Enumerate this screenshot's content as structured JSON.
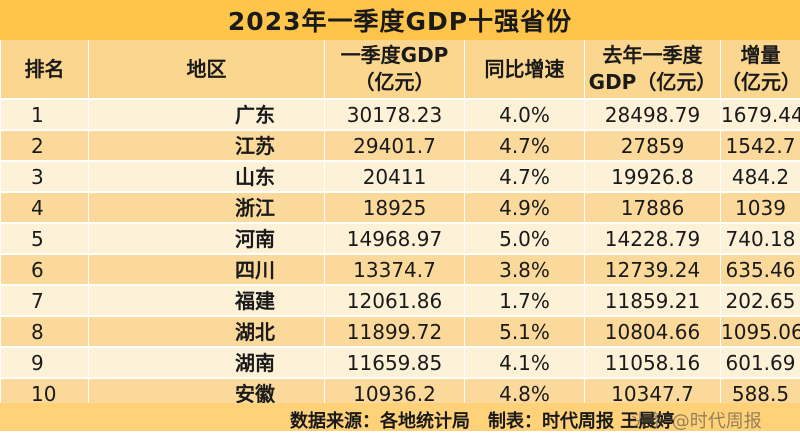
{
  "title": "2023年一季度GDP十强省份",
  "headers": {
    "rank": "排名",
    "region": "地区",
    "gdp_line1": "一季度GDP",
    "gdp_line2": "（亿元）",
    "growth": "同比增速",
    "prev_line1": "去年一季度",
    "prev_line2": "GDP（亿元）",
    "inc_line1": "增量",
    "inc_line2": "（亿元）"
  },
  "rows": [
    {
      "rank": "1",
      "region": "广东",
      "gdp": "30178.23",
      "growth": "4.0%",
      "prev": "28498.79",
      "inc": "1679.44"
    },
    {
      "rank": "2",
      "region": "江苏",
      "gdp": "29401.7",
      "growth": "4.7%",
      "prev": "27859",
      "inc": "1542.7"
    },
    {
      "rank": "3",
      "region": "山东",
      "gdp": "20411",
      "growth": "4.7%",
      "prev": "19926.8",
      "inc": "484.2"
    },
    {
      "rank": "4",
      "region": "浙江",
      "gdp": "18925",
      "growth": "4.9%",
      "prev": "17886",
      "inc": "1039"
    },
    {
      "rank": "5",
      "region": "河南",
      "gdp": "14968.97",
      "growth": "5.0%",
      "prev": "14228.79",
      "inc": "740.18"
    },
    {
      "rank": "6",
      "region": "四川",
      "gdp": "13374.7",
      "growth": "3.8%",
      "prev": "12739.24",
      "inc": "635.46"
    },
    {
      "rank": "7",
      "region": "福建",
      "gdp": "12061.86",
      "growth": "1.7%",
      "prev": "11859.21",
      "inc": "202.65"
    },
    {
      "rank": "8",
      "region": "湖北",
      "gdp": "11899.72",
      "growth": "5.1%",
      "prev": "10804.66",
      "inc": "1095.06"
    },
    {
      "rank": "9",
      "region": "湖南",
      "gdp": "11659.85",
      "growth": "4.1%",
      "prev": "11058.16",
      "inc": "601.69"
    },
    {
      "rank": "10",
      "region": "安徽",
      "gdp": "10936.2",
      "growth": "4.8%",
      "prev": "10347.7",
      "inc": "588.5"
    }
  ],
  "footer": {
    "source": "数据来源：各地统计局　制表：时代周报 王晨婷",
    "watermark": "头条 @时代周报"
  },
  "colors": {
    "title_bg": "#ffc44a",
    "header_bg": "#fbd68e",
    "row_light": "#fdf1d8",
    "row_dark": "#fbd99a"
  }
}
